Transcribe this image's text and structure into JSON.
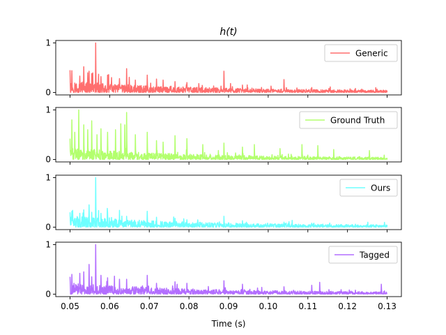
{
  "chart_data": {
    "type": "line",
    "title": "h(t)",
    "xlabel": "Time (s)",
    "xlim": [
      0.0464,
      0.1336
    ],
    "x_ticks": [
      "0.05",
      "0.06",
      "0.07",
      "0.08",
      "0.09",
      "0.10",
      "0.11",
      "0.12",
      "0.13"
    ],
    "x_tick_values": [
      0.05,
      0.06,
      0.07,
      0.08,
      0.09,
      0.1,
      0.11,
      0.12,
      0.13
    ],
    "x_range": [
      0.05,
      0.13
    ],
    "subplots": [
      {
        "series_name": "Generic",
        "color": "#ff6e6e",
        "ylim": [
          -0.05,
          1.05
        ],
        "y_ticks": [
          "0",
          "1"
        ],
        "legend": "upper right",
        "peaks": [
          [
            0.05,
            0.45
          ],
          [
            0.0505,
            0.44
          ],
          [
            0.0525,
            0.33
          ],
          [
            0.0535,
            0.52
          ],
          [
            0.0548,
            0.43
          ],
          [
            0.0555,
            0.38
          ],
          [
            0.0565,
            1.0
          ],
          [
            0.0578,
            0.32
          ],
          [
            0.0595,
            0.35
          ],
          [
            0.0605,
            0.3
          ],
          [
            0.0625,
            0.28
          ],
          [
            0.0643,
            0.48
          ],
          [
            0.0665,
            0.25
          ],
          [
            0.0695,
            0.35
          ],
          [
            0.0718,
            0.27
          ],
          [
            0.0735,
            0.25
          ],
          [
            0.0765,
            0.22
          ],
          [
            0.0795,
            0.2
          ],
          [
            0.0825,
            0.18
          ],
          [
            0.0888,
            0.43
          ],
          [
            0.0935,
            0.15
          ],
          [
            0.104,
            0.26
          ],
          [
            0.111,
            0.1
          ],
          [
            0.122,
            0.08
          ]
        ]
      },
      {
        "series_name": "Ground Truth",
        "color": "#b3ff6e",
        "ylim": [
          -0.05,
          1.05
        ],
        "y_ticks": [
          "0",
          "1"
        ],
        "legend": "upper right",
        "peaks": [
          [
            0.05,
            0.42
          ],
          [
            0.0505,
            0.8
          ],
          [
            0.0512,
            0.55
          ],
          [
            0.0522,
            1.0
          ],
          [
            0.0535,
            0.7
          ],
          [
            0.0545,
            0.6
          ],
          [
            0.0555,
            0.78
          ],
          [
            0.0568,
            0.5
          ],
          [
            0.0578,
            0.62
          ],
          [
            0.0595,
            0.55
          ],
          [
            0.0615,
            0.6
          ],
          [
            0.0628,
            0.72
          ],
          [
            0.0638,
            0.7
          ],
          [
            0.0643,
            0.95
          ],
          [
            0.0665,
            0.5
          ],
          [
            0.0695,
            0.55
          ],
          [
            0.0718,
            0.38
          ],
          [
            0.0735,
            0.35
          ],
          [
            0.0765,
            0.48
          ],
          [
            0.0795,
            0.42
          ],
          [
            0.0835,
            0.3
          ],
          [
            0.0888,
            0.33
          ],
          [
            0.0935,
            0.25
          ],
          [
            0.0965,
            0.3
          ],
          [
            0.103,
            0.22
          ],
          [
            0.1085,
            0.3
          ],
          [
            0.1125,
            0.28
          ],
          [
            0.1165,
            0.2
          ],
          [
            0.1255,
            0.18
          ]
        ]
      },
      {
        "series_name": "Ours",
        "color": "#6effff",
        "ylim": [
          -0.05,
          1.05
        ],
        "y_ticks": [
          "0",
          "1"
        ],
        "legend": "upper right",
        "peaks": [
          [
            0.05,
            0.3
          ],
          [
            0.0505,
            0.32
          ],
          [
            0.0525,
            0.28
          ],
          [
            0.0535,
            0.35
          ],
          [
            0.0548,
            0.45
          ],
          [
            0.0555,
            0.3
          ],
          [
            0.0565,
            1.0
          ],
          [
            0.0578,
            0.28
          ],
          [
            0.0595,
            0.3
          ],
          [
            0.0625,
            0.3
          ],
          [
            0.0643,
            0.22
          ],
          [
            0.0695,
            0.32
          ],
          [
            0.0718,
            0.2
          ],
          [
            0.0765,
            0.18
          ],
          [
            0.0795,
            0.15
          ],
          [
            0.0888,
            0.22
          ],
          [
            0.0935,
            0.13
          ],
          [
            0.104,
            0.1
          ],
          [
            0.111,
            0.08
          ],
          [
            0.122,
            0.06
          ]
        ]
      },
      {
        "series_name": "Tagged",
        "color": "#b36eff",
        "ylim": [
          -0.05,
          1.05
        ],
        "y_ticks": [
          "0",
          "1"
        ],
        "legend": "upper right",
        "peaks": [
          [
            0.05,
            0.35
          ],
          [
            0.0505,
            0.4
          ],
          [
            0.0525,
            0.42
          ],
          [
            0.0535,
            0.45
          ],
          [
            0.0548,
            0.6
          ],
          [
            0.0555,
            0.35
          ],
          [
            0.0565,
            1.0
          ],
          [
            0.0578,
            0.38
          ],
          [
            0.0595,
            0.33
          ],
          [
            0.0625,
            0.3
          ],
          [
            0.0643,
            0.3
          ],
          [
            0.0695,
            0.38
          ],
          [
            0.0718,
            0.22
          ],
          [
            0.0765,
            0.25
          ],
          [
            0.0795,
            0.22
          ],
          [
            0.0888,
            0.27
          ],
          [
            0.0935,
            0.2
          ],
          [
            0.104,
            0.15
          ],
          [
            0.111,
            0.18
          ],
          [
            0.113,
            0.24
          ],
          [
            0.122,
            0.08
          ],
          [
            0.1285,
            0.2
          ]
        ]
      }
    ]
  }
}
